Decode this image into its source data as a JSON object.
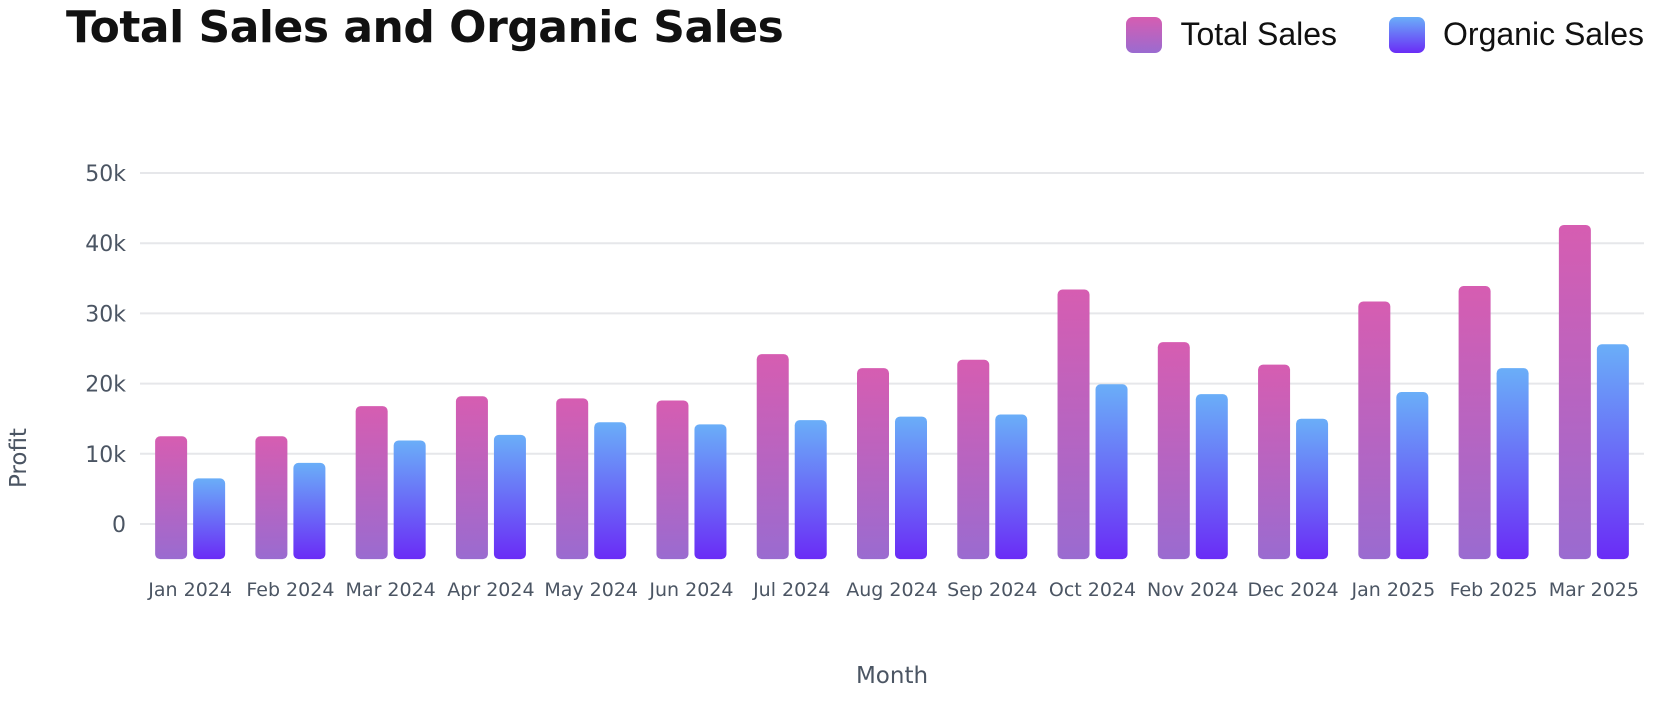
{
  "chart_data": {
    "type": "bar",
    "title": "Total Sales and Organic Sales",
    "xlabel": "Month",
    "ylabel": "Profit",
    "categories": [
      "Jan 2024",
      "Feb 2024",
      "Mar 2024",
      "Apr 2024",
      "May 2024",
      "Jun 2024",
      "Jul 2024",
      "Aug 2024",
      "Sep 2024",
      "Oct 2024",
      "Nov 2024",
      "Dec 2024",
      "Jan 2025",
      "Feb 2025",
      "Mar 2025"
    ],
    "series": [
      {
        "name": "Total Sales",
        "values": [
          12500,
          12500,
          16800,
          18200,
          17900,
          17600,
          24200,
          22200,
          23400,
          33400,
          25900,
          22700,
          31700,
          33900,
          42600
        ],
        "color_top": "#d65db1",
        "color_bottom": "#9a6bd0"
      },
      {
        "name": "Organic Sales",
        "values": [
          6500,
          8700,
          11900,
          12700,
          14500,
          14200,
          14800,
          15300,
          15600,
          19900,
          18500,
          15000,
          18800,
          22200,
          25600
        ],
        "color_top": "#6aaef8",
        "color_bottom": "#6a2cf6"
      }
    ],
    "ylim": [
      -5000,
      50000
    ],
    "yticks": [
      0,
      10000,
      20000,
      30000,
      40000,
      50000
    ],
    "ytick_labels": [
      "0",
      "10k",
      "20k",
      "30k",
      "40k",
      "50k"
    ],
    "grid": true,
    "legend_position": "top-right"
  }
}
